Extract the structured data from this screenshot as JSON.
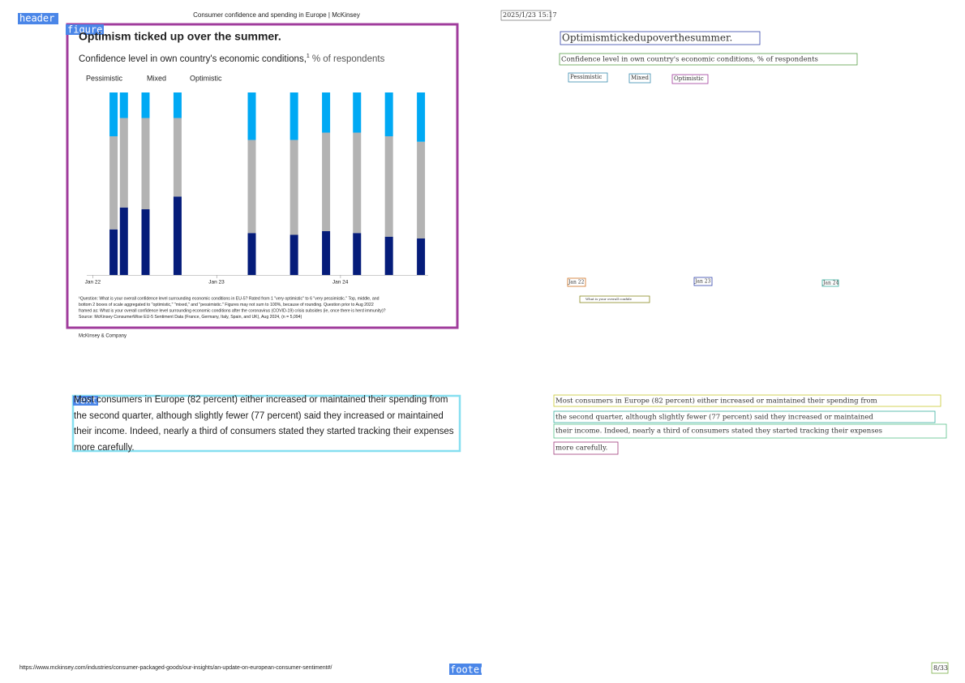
{
  "page": {
    "header_title": "Consumer confidence and spending in Europe | McKinsey",
    "timestamp": "2025/1/23 15:17",
    "url": "https://www.mckinsey.com/industries/consumer-packaged-goods/our-insights/an-update-on-european-consumer-sentiment#/",
    "page_number": "8/33",
    "source_brand": "McKinsey & Company"
  },
  "labels": {
    "header": "header",
    "figure": "figure",
    "text": "text",
    "footer": "footer"
  },
  "chart_data": {
    "type": "bar",
    "stacked": true,
    "title": "Optimism ticked up over the summer.",
    "subtitle": "Confidence level in own country's economic conditions,",
    "subtitle_note": "1",
    "subtitle_unit": "% of respondents",
    "x": [
      2,
      3,
      5.1,
      8.2,
      15.4,
      19.5,
      22.6,
      25.6,
      28.7,
      31.8
    ],
    "xlim": [
      -0.6,
      32.5
    ],
    "xticks": [
      {
        "value": 0,
        "label": "Jan 22"
      },
      {
        "value": 12,
        "label": "Jan 23"
      },
      {
        "value": 24,
        "label": "Jan 24"
      }
    ],
    "ylim": [
      0,
      100
    ],
    "series": [
      {
        "name": "Pessimistic",
        "color": "#00a9f4",
        "values": [
          24,
          14,
          14,
          14,
          26,
          26,
          22,
          22,
          24,
          27
        ]
      },
      {
        "name": "Mixed",
        "color": "#b3b3b3",
        "values": [
          51,
          49,
          50,
          43,
          51,
          52,
          54,
          55,
          55,
          53
        ]
      },
      {
        "name": "Optimistic",
        "color": "#051c7a",
        "values": [
          25,
          37,
          36,
          43,
          23,
          22,
          24,
          23,
          21,
          20
        ]
      }
    ],
    "footnote": [
      "¹Question: What is your overall confidence level surrounding economic conditions in EU-5? Rated from 1 \"very optimistic\" to 6 \"very pessimistic.\" Top, middle, and",
      "bottom 2 boxes of scale aggregated to \"optimistic,\" \"mixed,\" and \"pessimistic.\" Figures may not sum to 100%, because of rounding. Question prior to Aug 2022",
      "framed as: What is your overall confidence level surrounding economic conditions after the coronavirus (COVID-19) crisis subsides (ie, once there is herd immunity)?",
      "Source: McKinsey ConsumerWise EU-5 Sentiment Data (France, Germany, Italy, Spain, and UK), Aug 2024, (n = 5,094)"
    ]
  },
  "paragraph": [
    "Most consumers in Europe (82 percent) either increased or maintained their spending from",
    "the second quarter, although slightly fewer (77 percent) said they increased or maintained",
    "their income. Indeed, nearly a third of consumers stated they started tracking their expenses",
    "more carefully."
  ],
  "ocr": {
    "title": "Optimismtickedupoverthesummer.",
    "subtitle": "Confidence level in own country's economic conditions, % of respondents",
    "legend": [
      "Pessimistic",
      "Mixed",
      "Optimistic"
    ],
    "axis": [
      "Jan 22",
      "Jan 23",
      "Jan 24"
    ],
    "note": "What is your overall confide",
    "paragraph": [
      "Most consumers in Europe (82 percent) either increased or maintained their spending from",
      "the second quarter, although slightly fewer (77 percent) said they increased or maintained",
      "their income. Indeed, nearly a third of consumers stated they started tracking their expenses",
      "more carefully."
    ]
  }
}
